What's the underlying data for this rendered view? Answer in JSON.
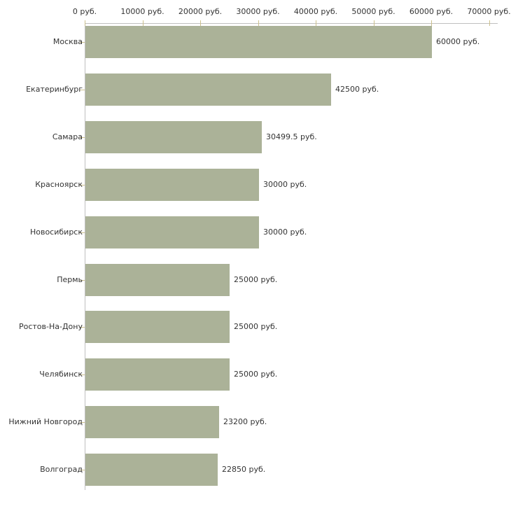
{
  "chart_data": {
    "type": "bar",
    "orientation": "horizontal",
    "title": "",
    "xlabel": "",
    "ylabel": "",
    "unit": "руб.",
    "categories": [
      "Москва",
      "Екатеринбург",
      "Самара",
      "Красноярск",
      "Новосибирск",
      "Пермь",
      "Ростов-На-Дону",
      "Челябинск",
      "Нижний Новгород",
      "Волгоград"
    ],
    "values": [
      60000,
      42500,
      30499.5,
      30000,
      30000,
      25000,
      25000,
      25000,
      23200,
      22850
    ],
    "value_labels": [
      "60000 руб.",
      "42500 руб.",
      "30499.5 руб.",
      "30000 руб.",
      "30000 руб.",
      "25000 руб.",
      "25000 руб.",
      "25000 руб.",
      "23200 руб.",
      "22850 руб."
    ],
    "x_axis": {
      "min": 0,
      "max": 70000,
      "position": "top",
      "ticks": [
        0,
        10000,
        20000,
        30000,
        40000,
        50000,
        60000,
        70000
      ],
      "tick_labels": [
        "0 руб.",
        "10000 руб.",
        "20000 руб.",
        "30000 руб.",
        "40000 руб.",
        "50000 руб.",
        "60000 руб.",
        "70000 руб."
      ]
    },
    "grid": false,
    "legend": false,
    "colors": {
      "bar": "#abb298",
      "axis_line": "#c0c0c0",
      "tick_mark": "#ccc08c",
      "text": "#333333",
      "background": "#ffffff"
    }
  }
}
